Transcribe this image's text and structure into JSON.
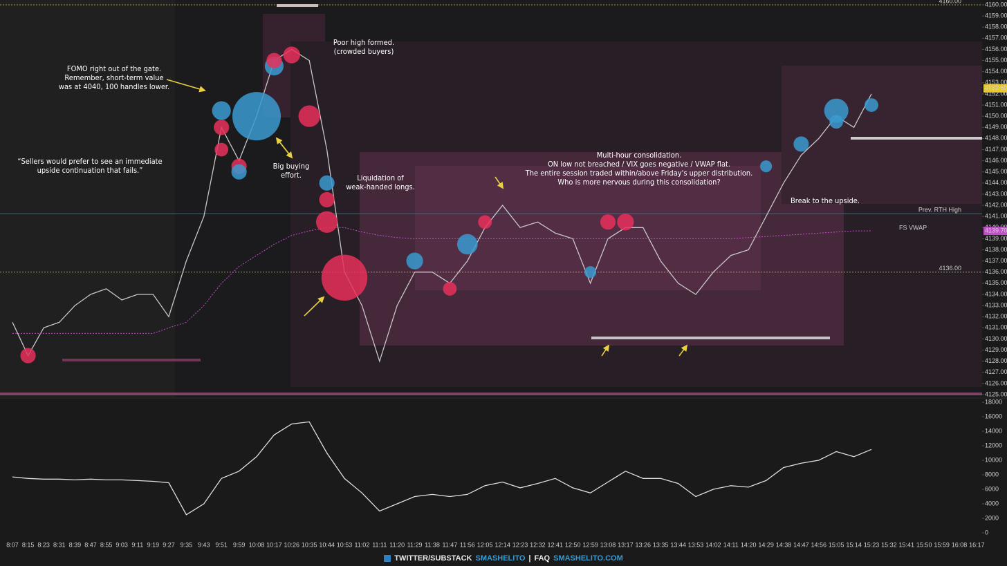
{
  "chart_data": [
    {
      "type": "line",
      "categories": [
        "8:07",
        "8:15",
        "8:23",
        "8:31",
        "8:39",
        "8:47",
        "8:55",
        "9:03",
        "9:11",
        "9:19",
        "9:27",
        "9:35",
        "9:43",
        "9:51",
        "9:59",
        "10:08",
        "10:17",
        "10:26",
        "10:35",
        "10:44",
        "10:53",
        "11:02",
        "11:11",
        "11:20",
        "11:29",
        "11:38",
        "11:47",
        "11:56",
        "12:05",
        "12:14",
        "12:23",
        "12:32",
        "12:41",
        "12:50",
        "12:59",
        "13:08",
        "13:17",
        "13:26",
        "13:35",
        "13:44",
        "13:53",
        "14:02",
        "14:11",
        "14:20",
        "14:29",
        "14:38",
        "14:47",
        "14:56",
        "15:05",
        "15:14",
        "15:23",
        "15:32",
        "15:41",
        "15:50",
        "15:59",
        "16:08",
        "16:17"
      ],
      "series": [
        {
          "color": "#c8c8c8",
          "values": [
            4131.5,
            4128.5,
            4131,
            4131.5,
            4133,
            4134,
            4134.5,
            4133.5,
            4134,
            4134,
            4132,
            4137,
            4141,
            4149,
            4146,
            4150,
            4155,
            4156,
            4155,
            4147,
            4136,
            4133,
            4128,
            4133,
            4136,
            4136,
            4135,
            4137,
            4140,
            4142,
            4140,
            4140.5,
            4139.5,
            4139,
            4135,
            4139,
            4140,
            4140,
            4137,
            4135,
            4134,
            4136,
            4137.5,
            4138,
            4141,
            4144,
            4146.5,
            4148,
            4150,
            4149,
            4152,
            null,
            null,
            null,
            null,
            null,
            null
          ],
          "last": {
            "value": 4152.5,
            "label": "4152.50"
          }
        },
        {
          "name": "FS VWAP",
          "color": "#c050c8",
          "dashed": true,
          "values": [
            4130.5,
            4130.5,
            4130.5,
            4130.5,
            4130.5,
            4130.5,
            4130.5,
            4130.5,
            4130.5,
            4130.5,
            4131,
            4131.5,
            4133,
            4135,
            4136.5,
            4137.5,
            4138.5,
            4139.3,
            4139.7,
            4140,
            4140,
            4139.6,
            4139.3,
            4139.1,
            4139,
            4139,
            4139,
            4139,
            4139,
            4139,
            4139,
            4139,
            4139,
            4139,
            4139,
            4139,
            4139,
            4139,
            4139,
            4139,
            4139,
            4139,
            4139,
            4139.1,
            4139.2,
            4139.3,
            4139.4,
            4139.5,
            4139.6,
            4139.7,
            4139.7,
            null,
            null,
            null,
            null,
            null,
            null
          ],
          "last": {
            "value": 4139.7,
            "label": "4139.70"
          }
        }
      ],
      "levels": [
        {
          "value": 4160,
          "label": "4160.00",
          "color": "#d8c040",
          "dashed": true
        },
        {
          "value": 4136,
          "label": "4136.00",
          "color": "#d8c040",
          "dashed": true
        },
        {
          "value": 4141.25,
          "label": "Prev. RTH High",
          "color": "#2f7f99",
          "dashed": false
        }
      ],
      "bubbles": {
        "buy_color": "#3a9ad0",
        "sell_color": "#e8305a",
        "points": [
          {
            "x": "8:15",
            "y": 4128.5,
            "size": 10,
            "side": "sell"
          },
          {
            "x": "9:51",
            "y": 4150.5,
            "size": 15,
            "side": "buy"
          },
          {
            "x": "9:51",
            "y": 4149,
            "size": 10,
            "side": "sell"
          },
          {
            "x": "9:51",
            "y": 4147,
            "size": 8,
            "side": "sell"
          },
          {
            "x": "9:59",
            "y": 4145.5,
            "size": 10,
            "side": "sell"
          },
          {
            "x": "9:59",
            "y": 4145,
            "size": 10,
            "side": "buy"
          },
          {
            "x": "10:08",
            "y": 4150,
            "size": 100,
            "side": "buy"
          },
          {
            "x": "10:17",
            "y": 4154.5,
            "size": 15,
            "side": "buy"
          },
          {
            "x": "10:17",
            "y": 4155,
            "size": 10,
            "side": "sell"
          },
          {
            "x": "10:26",
            "y": 4155.5,
            "size": 12,
            "side": "sell"
          },
          {
            "x": "10:35",
            "y": 4150,
            "size": 20,
            "side": "sell"
          },
          {
            "x": "10:44",
            "y": 4144,
            "size": 10,
            "side": "buy"
          },
          {
            "x": "10:44",
            "y": 4142.5,
            "size": 10,
            "side": "sell"
          },
          {
            "x": "10:44",
            "y": 4140.5,
            "size": 20,
            "side": "sell"
          },
          {
            "x": "10:53",
            "y": 4135.5,
            "size": 90,
            "side": "sell"
          },
          {
            "x": "11:29",
            "y": 4137,
            "size": 12,
            "side": "buy"
          },
          {
            "x": "11:47",
            "y": 4134.5,
            "size": 8,
            "side": "sell"
          },
          {
            "x": "11:56",
            "y": 4138.5,
            "size": 18,
            "side": "buy"
          },
          {
            "x": "12:05",
            "y": 4140.5,
            "size": 8,
            "side": "sell"
          },
          {
            "x": "12:59",
            "y": 4136,
            "size": 6,
            "side": "buy"
          },
          {
            "x": "13:08",
            "y": 4140.5,
            "size": 10,
            "side": "sell"
          },
          {
            "x": "13:17",
            "y": 4140.5,
            "size": 12,
            "side": "sell"
          },
          {
            "x": "14:29",
            "y": 4145.5,
            "size": 6,
            "side": "buy"
          },
          {
            "x": "14:47",
            "y": 4147.5,
            "size": 10,
            "side": "buy"
          },
          {
            "x": "15:05",
            "y": 4150.5,
            "size": 25,
            "side": "buy"
          },
          {
            "x": "15:05",
            "y": 4149.5,
            "size": 8,
            "side": "buy"
          },
          {
            "x": "15:23",
            "y": 4151,
            "size": 8,
            "side": "buy"
          }
        ]
      },
      "ylim": [
        4125,
        4160
      ],
      "yticks": [
        {
          "value": 4160,
          "label": "4160.00"
        },
        {
          "value": 4159,
          "label": "4159.00"
        },
        {
          "value": 4158,
          "label": "4158.00"
        },
        {
          "value": 4157,
          "label": "4157.00"
        },
        {
          "value": 4156,
          "label": "4156.00"
        },
        {
          "value": 4155,
          "label": "4155.00"
        },
        {
          "value": 4154,
          "label": "4154.00"
        },
        {
          "value": 4153,
          "label": "4153.00"
        },
        {
          "value": 4152,
          "label": "4152.00"
        },
        {
          "value": 4151,
          "label": "4151.00"
        },
        {
          "value": 4150,
          "label": "4150.00"
        },
        {
          "value": 4149,
          "label": "4149.00"
        },
        {
          "value": 4148,
          "label": "4148.00"
        },
        {
          "value": 4147,
          "label": "4147.00"
        },
        {
          "value": 4146,
          "label": "4146.00"
        },
        {
          "value": 4145,
          "label": "4145.00"
        },
        {
          "value": 4144,
          "label": "4144.00"
        },
        {
          "value": 4143,
          "label": "4143.00"
        },
        {
          "value": 4142,
          "label": "4142.00"
        },
        {
          "value": 4141,
          "label": "4141.00"
        },
        {
          "value": 4140,
          "label": "4140.00"
        },
        {
          "value": 4139,
          "label": "4139.00"
        },
        {
          "value": 4138,
          "label": "4138.00"
        },
        {
          "value": 4137,
          "label": "4137.00"
        },
        {
          "value": 4136,
          "label": "4136.00"
        },
        {
          "value": 4135,
          "label": "4135.00"
        },
        {
          "value": 4134,
          "label": "4134.00"
        },
        {
          "value": 4133,
          "label": "4133.00"
        },
        {
          "value": 4132,
          "label": "4132.00"
        },
        {
          "value": 4131,
          "label": "4131.00"
        },
        {
          "value": 4130,
          "label": "4130.00"
        },
        {
          "value": 4129,
          "label": "4129.00"
        },
        {
          "value": 4128,
          "label": "4128.00"
        },
        {
          "value": 4127,
          "label": "4127.00"
        },
        {
          "value": 4126,
          "label": "4126.00"
        },
        {
          "value": 4125,
          "label": "4125.00"
        }
      ],
      "annotations": [
        [
          "FOMO right out of the gate.",
          "Remember, short-term value",
          "was at 4040, 100 handles lower."
        ],
        [
          "“Sellers would prefer to see an immediate",
          "upside continuation that fails.”"
        ],
        [
          "Big buying",
          "effort."
        ],
        [
          "Poor high formed.",
          "(crowded buyers)"
        ],
        [
          "Liquidation of",
          "weak-handed longs."
        ],
        [
          "Multi-hour consolidation.",
          "ON low not breached / VIX goes negative / VWAP flat.",
          "The entire session traded within/above Friday's upper distribution.",
          "Who is more nervous during this consolidation?"
        ],
        [
          "Break to the upside."
        ]
      ]
    },
    {
      "type": "line",
      "series": [
        {
          "color": "#e0e0e0",
          "values": [
            7700,
            7500,
            7400,
            7400,
            7300,
            7400,
            7300,
            7300,
            7200,
            7100,
            6900,
            2500,
            4000,
            7500,
            8500,
            10500,
            13500,
            15000,
            15300,
            11000,
            7500,
            5500,
            3000,
            4000,
            5000,
            5300,
            5000,
            5300,
            6500,
            7000,
            6200,
            6800,
            7500,
            6200,
            5500,
            7000,
            8500,
            7500,
            7500,
            6800,
            5000,
            6000,
            6500,
            6300,
            7200,
            9000,
            9600,
            10000,
            11200,
            10500,
            11500,
            null,
            null,
            null,
            null,
            null,
            null
          ]
        }
      ],
      "ylim": [
        0,
        18000
      ],
      "yticks": [
        0,
        2000,
        4000,
        6000,
        8000,
        10000,
        12000,
        14000,
        16000,
        18000
      ]
    }
  ],
  "footer": {
    "left": "TWITTER/SUBSTACK",
    "handle": "SMASHELITO",
    "separator": "|",
    "faq": "FAQ",
    "site": "SMASHELITO.COM"
  }
}
